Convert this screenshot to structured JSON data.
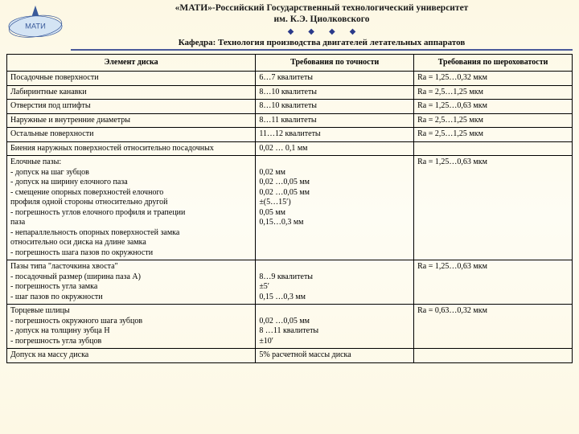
{
  "header": {
    "university": "«МАТИ»-Российский Государственный технологический университет\nим. К.Э. Циолковского",
    "department": "Кафедра: Технология производства двигателей летательных аппаратов",
    "logo_text": "МАТИ"
  },
  "table": {
    "columns": [
      "Элемент диска",
      "Требования по точности",
      "Требования по шероховатости"
    ],
    "rows": [
      {
        "c1": "Посадочные поверхности",
        "c2": "6…7 квалитеты",
        "c3": "Ra = 1,25…0,32 мкм"
      },
      {
        "c1": "Лабиринтные канавки",
        "c2": "8…10 квалитеты",
        "c3": "Ra = 2,5…1,25 мкм"
      },
      {
        "c1": "Отверстия под штифты",
        "c2": "8…10 квалитеты",
        "c3": "Ra = 1,25…0,63 мкм"
      },
      {
        "c1": "Наружные и внутренние диаметры",
        "c2": "8…11 квалитеты",
        "c3": "Ra = 2,5…1,25 мкм"
      },
      {
        "c1": "Остальные поверхности",
        "c2": "11…12 квалитеты",
        "c3": "Ra = 2,5…1,25 мкм"
      },
      {
        "c1": "Биения наружных поверхностей относительно посадочных",
        "c2": "0,02 … 0,1 мм",
        "c3": ""
      },
      {
        "c1": "Елочные пазы:\n  - допуск на шаг зубцов\n  - допуск на ширину елочного паза\n  - смещение опорных поверхностей    елочного\n    профиля одной стороны относительно другой\n  - погрешность углов елочного профиля и трапеции\n    паза\n  - непараллельность опорных поверхностей замка\n    относительно оси диска на длине замка\n  - погрешность шага пазов по окружности",
        "c2": "\n0,02 мм\n0,02 …0,05 мм\n0,02 …0,05 мм\n±(5…15′)\n0,05 мм\n0,15…0,3 мм",
        "c3": "Ra = 1,25…0,63 мкм"
      },
      {
        "c1": "Пазы типа \"ласточкина хвоста\"\n  - посадочный размер (ширина паза A)\n  - погрешность угла замка\n  - шаг пазов по окружности",
        "c2": "\n8…9 квалитеты\n±5′\n0,15 …0,3 мм",
        "c3": "Ra = 1,25…0,63 мкм"
      },
      {
        "c1": "Торцевые шлицы\n  - погрешность окружного шага зубцов\n  - допуск на толщину зубца H\n  - погрешность угла зубцов",
        "c2": "\n0,02 …0,05 мм\n8 …11 квалитеты\n±10′",
        "c3": "Ra = 0,63…0,32 мкм"
      },
      {
        "c1": "Допуск на массу диска",
        "c2": "5% расчетной массы диска",
        "c3": ""
      }
    ]
  },
  "style": {
    "bg_gradient": [
      "#fdf8e4",
      "#fefdf4",
      "#fdf8e4"
    ],
    "header_rule_color": "#4a5a9a",
    "diamond_color": "#2a3a8a",
    "border_color": "#000000",
    "font_family": "Times New Roman",
    "body_font_size_pt": 8,
    "header_font_size_pt": 9,
    "logo_ellipse_color": "#7aa6d8",
    "logo_ring_color": "#3a5a9a"
  }
}
